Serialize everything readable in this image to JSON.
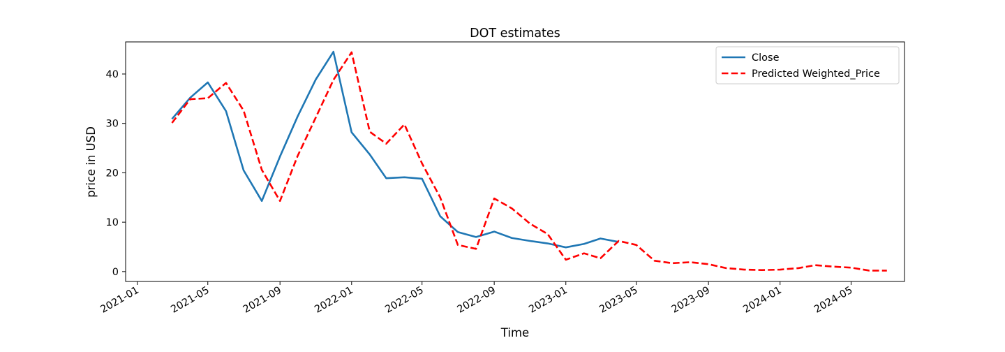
{
  "chart_data": {
    "type": "line",
    "title": "DOT estimates",
    "xlabel": "Time",
    "ylabel": "price in USD",
    "x_axis": "date",
    "xlim": [
      "2020-12-12",
      "2024-07-31"
    ],
    "ylim": [
      -2,
      46.5
    ],
    "x_ticks": [
      "2021-01-01",
      "2021-05-01",
      "2021-09-01",
      "2022-01-01",
      "2022-05-01",
      "2022-09-01",
      "2023-01-01",
      "2023-05-01",
      "2023-09-01",
      "2024-01-01",
      "2024-05-01"
    ],
    "x_tick_labels": [
      "2021-01",
      "2021-05",
      "2021-09",
      "2022-01",
      "2022-05",
      "2022-09",
      "2023-01",
      "2023-05",
      "2023-09",
      "2024-01",
      "2024-05"
    ],
    "y_ticks": [
      0,
      10,
      20,
      30,
      40
    ],
    "y_tick_labels": [
      "0",
      "10",
      "20",
      "30",
      "40"
    ],
    "grid": false,
    "legend": "top-right",
    "series": [
      {
        "name": "Close",
        "color": "#1f77b4",
        "line_style": "solid",
        "x": [
          "2021-03-01",
          "2021-04-01",
          "2021-05-01",
          "2021-06-01",
          "2021-07-01",
          "2021-08-01",
          "2021-09-01",
          "2021-10-01",
          "2021-11-01",
          "2021-12-01",
          "2022-01-01",
          "2022-02-01",
          "2022-03-01",
          "2022-04-01",
          "2022-05-01",
          "2022-06-01",
          "2022-07-01",
          "2022-08-01",
          "2022-09-01",
          "2022-10-01",
          "2022-11-01",
          "2022-12-01",
          "2023-01-01",
          "2023-02-01",
          "2023-03-01",
          "2023-04-01"
        ],
        "y": [
          30.9,
          35.2,
          38.3,
          32.5,
          20.5,
          14.3,
          23.3,
          31.4,
          38.9,
          44.5,
          28.2,
          23.7,
          18.9,
          19.1,
          18.8,
          11.2,
          8.0,
          7.0,
          8.1,
          6.8,
          6.2,
          5.7,
          4.9,
          5.6,
          6.7,
          6.0
        ]
      },
      {
        "name": "Predicted Weighted_Price",
        "color": "#ff0000",
        "line_style": "dashed",
        "x": [
          "2021-03-01",
          "2021-04-01",
          "2021-05-01",
          "2021-06-01",
          "2021-07-01",
          "2021-08-01",
          "2021-09-01",
          "2021-10-01",
          "2021-11-01",
          "2021-12-01",
          "2022-01-01",
          "2022-02-01",
          "2022-03-01",
          "2022-04-01",
          "2022-05-01",
          "2022-06-01",
          "2022-07-01",
          "2022-08-01",
          "2022-09-01",
          "2022-10-01",
          "2022-11-01",
          "2022-12-01",
          "2023-01-01",
          "2023-02-01",
          "2023-03-01",
          "2023-04-01",
          "2023-05-01",
          "2023-06-01",
          "2023-07-01",
          "2023-08-01",
          "2023-09-01",
          "2023-10-01",
          "2023-11-01",
          "2023-12-01",
          "2024-01-01",
          "2024-02-01",
          "2024-03-01",
          "2024-04-01",
          "2024-05-01",
          "2024-06-01",
          "2024-07-01"
        ],
        "y": [
          30.1,
          34.9,
          35.1,
          38.2,
          32.6,
          20.6,
          14.3,
          23.4,
          31.2,
          38.8,
          44.4,
          28.3,
          25.9,
          29.8,
          21.9,
          15.0,
          5.4,
          4.6,
          14.8,
          12.8,
          9.7,
          7.6,
          2.4,
          3.7,
          2.7,
          6.2,
          5.4,
          2.2,
          1.7,
          1.9,
          1.5,
          0.7,
          0.4,
          0.3,
          0.4,
          0.7,
          1.3,
          1.0,
          0.8,
          0.2,
          0.2
        ]
      }
    ]
  }
}
